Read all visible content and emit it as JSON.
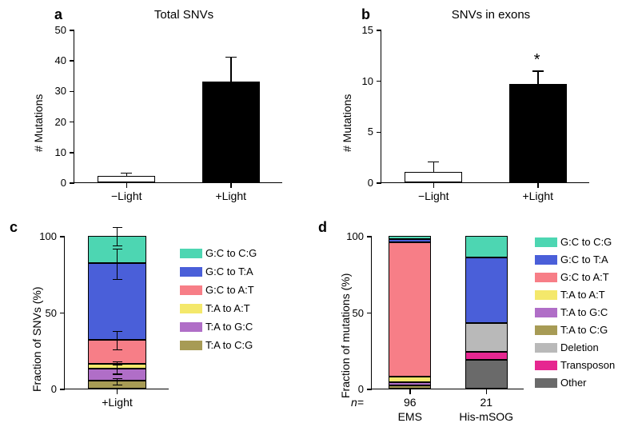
{
  "font": {
    "family": "Arial",
    "title_size": 15,
    "label_size": 14,
    "tick_size": 13,
    "panel_label_size": 18
  },
  "colors": {
    "bg": "#ffffff",
    "axis": "#000000",
    "bar_fill_white": "#ffffff",
    "bar_fill_black": "#000000",
    "gc_cg": "#4dd6b2",
    "gc_ta": "#4a5fd9",
    "gc_at": "#f77e87",
    "ta_at": "#f4e86b",
    "ta_gc": "#b06ec7",
    "ta_cg": "#a79b55",
    "deletion": "#b9b9b9",
    "transposon": "#e62790",
    "other": "#6a6a6a"
  },
  "panel_a": {
    "label": "a",
    "title": "Total SNVs",
    "ylabel": "# Mutations",
    "ylim": [
      0,
      50
    ],
    "ytick_step": 10,
    "categories": [
      "−Light",
      "+Light"
    ],
    "values": [
      2,
      33
    ],
    "errors": [
      1,
      8
    ],
    "bar_fills": [
      "#ffffff",
      "#000000"
    ],
    "bar_width": 0.55
  },
  "panel_b": {
    "label": "b",
    "title": "SNVs in exons",
    "ylabel": "# Mutations",
    "ylim": [
      0,
      15
    ],
    "ytick_step": 5,
    "categories": [
      "−Light",
      "+Light"
    ],
    "values": [
      1,
      9.7
    ],
    "errors": [
      1,
      1.2
    ],
    "bar_fills": [
      "#ffffff",
      "#000000"
    ],
    "bar_width": 0.55,
    "significance": "*"
  },
  "panel_c": {
    "label": "c",
    "ylabel": "Fraction of SNVs (%)",
    "ylim": [
      0,
      100
    ],
    "ytick_step": 50,
    "major_ticks": [
      0,
      50,
      100
    ],
    "categories": [
      "+Light"
    ],
    "segments": [
      {
        "name": "T:A to C:G",
        "value": 5,
        "color": "#a79b55"
      },
      {
        "name": "T:A to G:C",
        "value": 8,
        "color": "#b06ec7"
      },
      {
        "name": "T:A to A:T",
        "value": 3,
        "color": "#f4e86b"
      },
      {
        "name": "G:C to A:T",
        "value": 16,
        "color": "#f77e87"
      },
      {
        "name": "G:C to T:A",
        "value": 50,
        "color": "#4a5fd9"
      },
      {
        "name": "G:C to C:G",
        "value": 18,
        "color": "#4dd6b2"
      }
    ],
    "error_points": [
      {
        "at": 5,
        "err": 2
      },
      {
        "at": 13,
        "err": 3
      },
      {
        "at": 16,
        "err": 2
      },
      {
        "at": 32,
        "err": 6
      },
      {
        "at": 82,
        "err": 10
      },
      {
        "at": 100,
        "err": 6
      }
    ],
    "legend_order": [
      "G:C to C:G",
      "G:C to T:A",
      "G:C to A:T",
      "T:A to A:T",
      "T:A to G:C",
      "T:A to C:G"
    ]
  },
  "panel_d": {
    "label": "d",
    "ylabel": "Fraction of mutations (%)",
    "ylim": [
      0,
      100
    ],
    "ytick_step": 50,
    "major_ticks": [
      0,
      50,
      100
    ],
    "categories": [
      "EMS",
      "His-mSOG"
    ],
    "n_values": [
      96,
      21
    ],
    "n_prefix": "n=",
    "stacks": {
      "EMS": [
        {
          "name": "T:A to C:G",
          "value": 2,
          "color": "#a79b55"
        },
        {
          "name": "T:A to G:C",
          "value": 2,
          "color": "#b06ec7"
        },
        {
          "name": "T:A to A:T",
          "value": 4,
          "color": "#f4e86b"
        },
        {
          "name": "G:C to A:T",
          "value": 88,
          "color": "#f77e87"
        },
        {
          "name": "G:C to T:A",
          "value": 2,
          "color": "#4a5fd9"
        },
        {
          "name": "G:C to C:G",
          "value": 2,
          "color": "#4dd6b2"
        }
      ],
      "His-mSOG": [
        {
          "name": "Other",
          "value": 19,
          "color": "#6a6a6a"
        },
        {
          "name": "Transposon",
          "value": 5,
          "color": "#e62790"
        },
        {
          "name": "Deletion",
          "value": 19,
          "color": "#b9b9b9"
        },
        {
          "name": "G:C to T:A",
          "value": 43,
          "color": "#4a5fd9"
        },
        {
          "name": "G:C to C:G",
          "value": 14,
          "color": "#4dd6b2"
        }
      ]
    },
    "legend_order": [
      "G:C to C:G",
      "G:C to T:A",
      "G:C to A:T",
      "T:A to A:T",
      "T:A to G:C",
      "T:A to C:G",
      "Deletion",
      "Transposon",
      "Other"
    ]
  }
}
